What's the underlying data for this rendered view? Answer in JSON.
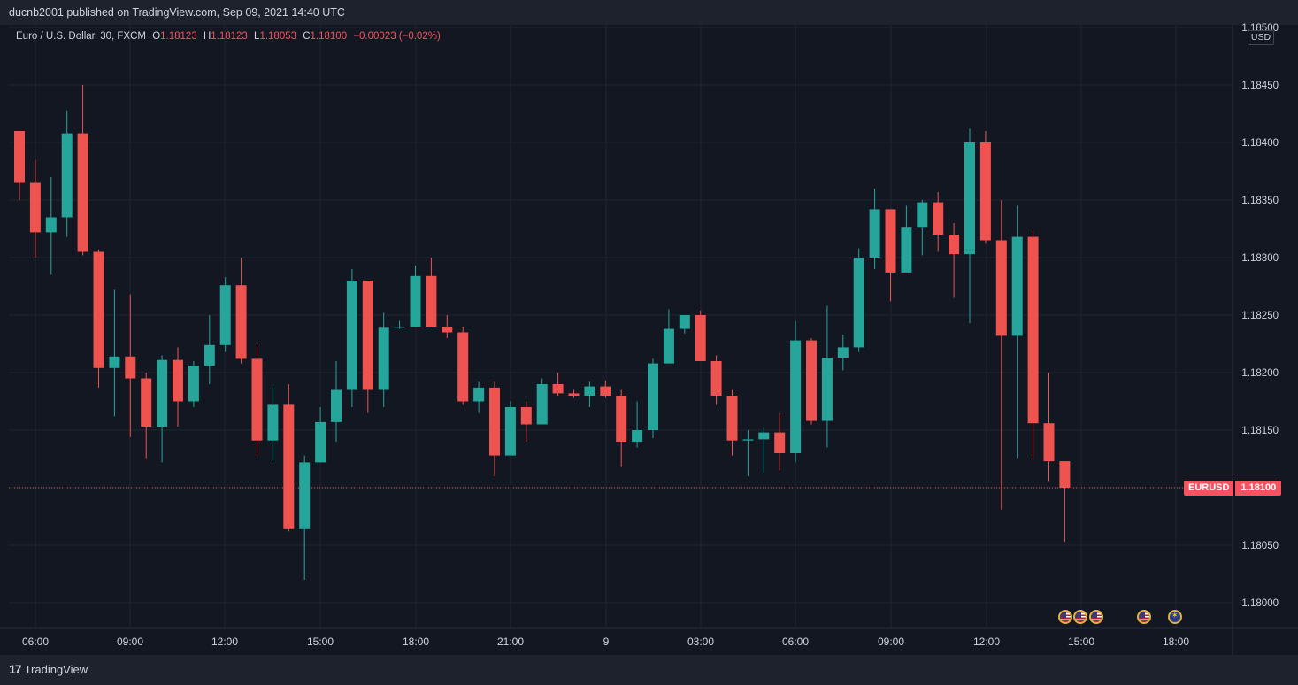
{
  "header": {
    "publisher_text": "ducnb2001 published on TradingView.com, Sep 09, 2021 14:40 UTC"
  },
  "legend": {
    "symbol_description": "Euro / U.S. Dollar, 30, FXCM",
    "open_label": "O",
    "open_value": "1.18123",
    "high_label": "H",
    "high_value": "1.18123",
    "low_label": "L",
    "low_value": "1.18053",
    "close_label": "C",
    "close_value": "1.18100",
    "change_text": "−0.00023 (−0.02%)"
  },
  "price_axis": {
    "currency": "USD",
    "last_symbol": "EURUSD",
    "last_price": "1.18100"
  },
  "footer": {
    "brand_mark": "17",
    "brand_name": "TradingView"
  },
  "colors": {
    "up": "#26a69a",
    "down": "#ef5350",
    "background": "#131722",
    "grid": "#1f2430",
    "text": "#d1d4dc"
  },
  "event_icons": [
    "us-flag-icon",
    "us-flag-icon",
    "us-flag-icon",
    "us-flag-icon",
    "eu-flag-icon"
  ],
  "chart_data": {
    "type": "candlestick",
    "title": "Euro / U.S. Dollar, 30, FXCM",
    "ylabel": "USD",
    "ylim": [
      1.1797,
      1.1851
    ],
    "y_ticks": [
      "1.18500",
      "1.18450",
      "1.18400",
      "1.18350",
      "1.18300",
      "1.18250",
      "1.18200",
      "1.18150",
      "1.18100",
      "1.18050",
      "1.18000"
    ],
    "x_ticks": [
      "06:00",
      "09:00",
      "12:00",
      "15:00",
      "18:00",
      "21:00",
      "9",
      "03:00",
      "06:00",
      "09:00",
      "12:00",
      "15:00",
      "18:00"
    ],
    "last_price": 1.181,
    "series": [
      {
        "values": [
          [
            1.1841,
            1.1841,
            1.1835,
            1.18365
          ],
          [
            1.18365,
            1.18385,
            1.183,
            1.18322
          ],
          [
            1.18322,
            1.1837,
            1.18285,
            1.18335
          ],
          [
            1.18335,
            1.18428,
            1.18318,
            1.18408
          ],
          [
            1.18408,
            1.1845,
            1.18302,
            1.18305
          ],
          [
            1.18305,
            1.18307,
            1.18187,
            1.18204
          ],
          [
            1.18204,
            1.18272,
            1.18162,
            1.18214
          ],
          [
            1.18214,
            1.18268,
            1.18144,
            1.18195
          ],
          [
            1.18195,
            1.182,
            1.18125,
            1.18153
          ],
          [
            1.18153,
            1.18215,
            1.18122,
            1.18211
          ],
          [
            1.18211,
            1.18222,
            1.18153,
            1.18175
          ],
          [
            1.18175,
            1.1821,
            1.1817,
            1.18206
          ],
          [
            1.18206,
            1.1825,
            1.1819,
            1.18224
          ],
          [
            1.18224,
            1.18283,
            1.18218,
            1.18276
          ],
          [
            1.18276,
            1.183,
            1.18208,
            1.18212
          ],
          [
            1.18212,
            1.18223,
            1.18128,
            1.18141
          ],
          [
            1.18141,
            1.1819,
            1.18123,
            1.18172
          ],
          [
            1.18172,
            1.1819,
            1.18062,
            1.18064
          ],
          [
            1.18064,
            1.18128,
            1.1802,
            1.18122
          ],
          [
            1.18122,
            1.1817,
            1.18122,
            1.18157
          ],
          [
            1.18157,
            1.1821,
            1.1814,
            1.18185
          ],
          [
            1.18185,
            1.1829,
            1.1817,
            1.1828
          ],
          [
            1.1828,
            1.1828,
            1.18165,
            1.18185
          ],
          [
            1.18185,
            1.18252,
            1.1817,
            1.18239
          ],
          [
            1.18239,
            1.18245,
            1.18238,
            1.1824
          ],
          [
            1.1824,
            1.18293,
            1.1824,
            1.18284
          ],
          [
            1.18284,
            1.183,
            1.1824,
            1.1824
          ],
          [
            1.1824,
            1.1825,
            1.1823,
            1.18235
          ],
          [
            1.18235,
            1.1824,
            1.18172,
            1.18175
          ],
          [
            1.18175,
            1.18192,
            1.18165,
            1.18187
          ],
          [
            1.18187,
            1.18192,
            1.1811,
            1.18128
          ],
          [
            1.18128,
            1.18175,
            1.18128,
            1.1817
          ],
          [
            1.1817,
            1.18175,
            1.1814,
            1.18155
          ],
          [
            1.18155,
            1.18195,
            1.18155,
            1.1819
          ],
          [
            1.1819,
            1.182,
            1.1818,
            1.18182
          ],
          [
            1.18182,
            1.18185,
            1.18178,
            1.1818
          ],
          [
            1.1818,
            1.18192,
            1.1817,
            1.18188
          ],
          [
            1.18188,
            1.18193,
            1.18178,
            1.1818
          ],
          [
            1.1818,
            1.18185,
            1.18118,
            1.1814
          ],
          [
            1.1814,
            1.18175,
            1.18135,
            1.1815
          ],
          [
            1.1815,
            1.18212,
            1.18143,
            1.18208
          ],
          [
            1.18208,
            1.18255,
            1.18208,
            1.18238
          ],
          [
            1.18238,
            1.1825,
            1.18234,
            1.1825
          ],
          [
            1.1825,
            1.18254,
            1.1821,
            1.1821
          ],
          [
            1.1821,
            1.18215,
            1.18172,
            1.1818
          ],
          [
            1.1818,
            1.18185,
            1.18128,
            1.18141
          ],
          [
            1.18141,
            1.1815,
            1.1811,
            1.18142
          ],
          [
            1.18142,
            1.18152,
            1.18113,
            1.18148
          ],
          [
            1.18148,
            1.18165,
            1.18115,
            1.1813
          ],
          [
            1.1813,
            1.18245,
            1.18122,
            1.18228
          ],
          [
            1.18228,
            1.1823,
            1.18155,
            1.18158
          ],
          [
            1.18158,
            1.18258,
            1.18135,
            1.18213
          ],
          [
            1.18213,
            1.18233,
            1.18202,
            1.18222
          ],
          [
            1.18222,
            1.18308,
            1.18218,
            1.183
          ],
          [
            1.183,
            1.1836,
            1.1829,
            1.18342
          ],
          [
            1.18342,
            1.18342,
            1.18262,
            1.18287
          ],
          [
            1.18287,
            1.18345,
            1.18287,
            1.18326
          ],
          [
            1.18326,
            1.1835,
            1.18302,
            1.18348
          ],
          [
            1.18348,
            1.18357,
            1.18305,
            1.1832
          ],
          [
            1.1832,
            1.1833,
            1.18265,
            1.18303
          ],
          [
            1.18303,
            1.18412,
            1.18243,
            1.184
          ],
          [
            1.184,
            1.1841,
            1.18312,
            1.18315
          ],
          [
            1.18315,
            1.1835,
            1.18081,
            1.18232
          ],
          [
            1.18232,
            1.18345,
            1.18125,
            1.18318
          ],
          [
            1.18318,
            1.18323,
            1.18125,
            1.18156
          ],
          [
            1.18156,
            1.182,
            1.18105,
            1.18123
          ],
          [
            1.18123,
            1.18123,
            1.18053,
            1.181
          ]
        ]
      }
    ]
  }
}
